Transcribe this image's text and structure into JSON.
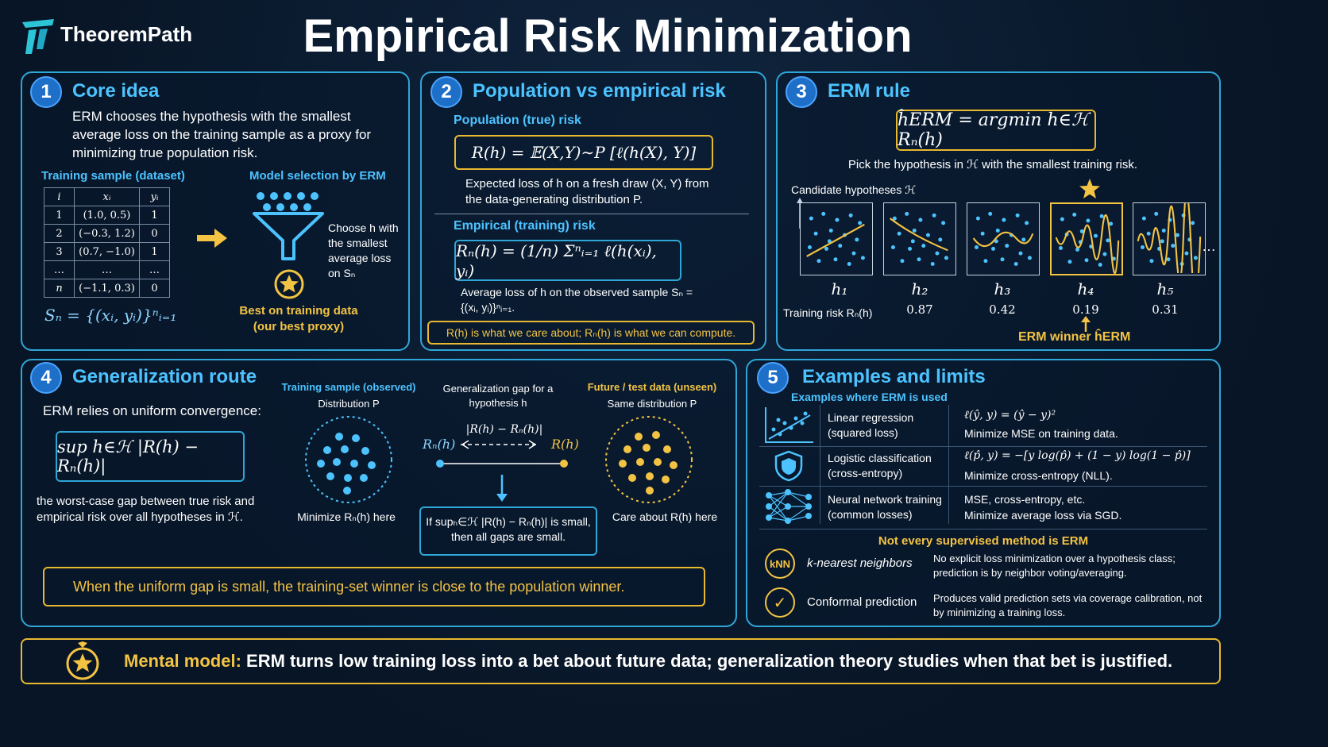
{
  "header": {
    "brand": "TheoremPath",
    "title": "Empirical Risk Minimization",
    "logo_icon": "theorempath-logo-icon"
  },
  "colors": {
    "accent_blue": "#4cc3ff",
    "accent_gold": "#f3c343",
    "border_blue": "#2fa6d6",
    "background": "#0b1a2e"
  },
  "panel1": {
    "number": "1",
    "title": "Core idea",
    "description": "ERM chooses the hypothesis with the smallest average loss on the training sample as a proxy for minimizing true population risk.",
    "table_title": "Training sample (dataset)",
    "table_headers": [
      "i",
      "xᵢ",
      "yᵢ"
    ],
    "table_rows": [
      [
        "1",
        "(1.0, 0.5)",
        "1"
      ],
      [
        "2",
        "(−0.3, 1.2)",
        "0"
      ],
      [
        "3",
        "(0.7, −1.0)",
        "1"
      ],
      [
        "…",
        "…",
        "…"
      ],
      [
        "n",
        "(−1.1, 0.3)",
        "0"
      ]
    ],
    "sample_formula": "Sₙ = {(xᵢ, yᵢ)}ⁿᵢ₌₁",
    "selection_title": "Model selection by ERM",
    "selection_text": "Choose h with the smallest average loss on Sₙ",
    "best_label": "Best on training data (our best proxy)"
  },
  "panel2": {
    "number": "2",
    "title": "Population vs empirical risk",
    "pop_title": "Population (true) risk",
    "pop_formula": "R(h) = 𝔼(X,Y)∼P [ℓ(h(X), Y)]",
    "pop_desc": "Expected loss of h on a fresh draw (X, Y) from the data-generating distribution P.",
    "emp_title": "Empirical (training) risk",
    "emp_formula": "Rₙ(h) = (1/n) Σⁿᵢ₌₁ ℓ(h(xᵢ), yᵢ)",
    "emp_desc": "Average loss of h on the observed sample Sₙ = {(xᵢ, yᵢ)}ⁿᵢ₌₁.",
    "note": "R(h) is what we care about; Rₙ(h) is what we can compute."
  },
  "panel3": {
    "number": "3",
    "title": "ERM rule",
    "formula": "ĥERM = argmin h∈ℋ Rₙ(h)",
    "desc": "Pick the hypothesis in ℋ with the smallest training risk.",
    "candidates_label": "Candidate hypotheses ℋ",
    "risk_label": "Training risk Rₙ(h)",
    "hypotheses": [
      {
        "name": "h₁",
        "risk": ""
      },
      {
        "name": "h₂",
        "risk": "0.87"
      },
      {
        "name": "h₃",
        "risk": "0.42"
      },
      {
        "name": "h₄",
        "risk": "0.19"
      },
      {
        "name": "h₅",
        "risk": "0.31"
      }
    ],
    "ellipsis": "…",
    "winner_label": "ERM winner ĥERM"
  },
  "panel4": {
    "number": "4",
    "title": "Generalization route",
    "intro": "ERM relies on uniform convergence:",
    "formula": "sup h∈ℋ |R(h) − Rₙ(h)|",
    "formula_desc": "the worst-case gap between true risk and empirical risk over all hypotheses in ℋ.",
    "train_title": "Training sample (observed)",
    "train_sub": "Distribution P",
    "train_caption": "Minimize Rₙ(h) here",
    "gap_title": "Generalization gap for a hypothesis h",
    "gap_formula": "|R(h) − Rₙ(h)|",
    "gap_left": "Rₙ(h)",
    "gap_right": "R(h)",
    "gap_note": "If supₕ∈ℋ |R(h) − Rₙ(h)| is small, then all gaps are small.",
    "test_title": "Future / test data (unseen)",
    "test_sub": "Same distribution P",
    "test_caption": "Care about R(h) here",
    "banner": "When the uniform gap is small, the training-set winner is close to the population winner."
  },
  "panel5": {
    "number": "5",
    "title": "Examples and limits",
    "examples_title": "Examples where ERM is used",
    "examples": [
      {
        "icon": "linear-regression-icon",
        "name": "Linear regression (squared loss)",
        "formula": "ℓ(ŷ, y) = (ŷ − y)²",
        "desc": "Minimize MSE on training data."
      },
      {
        "icon": "shield-icon",
        "name": "Logistic classification (cross-entropy)",
        "formula": "ℓ(p̂, y) = −[y log(p̂) + (1 − y) log(1 − p̂)]",
        "desc": "Minimize cross-entropy (NLL)."
      },
      {
        "icon": "neural-network-icon",
        "name": "Neural network training (common losses)",
        "formula": "MSE, cross-entropy, etc.",
        "desc": "Minimize average loss via SGD."
      }
    ],
    "limits_title": "Not every supervised method is ERM",
    "limits": [
      {
        "icon_text": "kNN",
        "name": "k-nearest neighbors",
        "desc": "No explicit loss minimization over a hypothesis class; prediction is by neighbor voting/averaging."
      },
      {
        "icon_text": "✓",
        "name": "Conformal prediction",
        "desc": "Produces valid prediction sets via coverage calibration, not by minimizing a training loss."
      }
    ]
  },
  "footer": {
    "label": "Mental model:",
    "text": "ERM turns low training loss into a bet about future data; generalization theory studies when that bet is justified."
  }
}
